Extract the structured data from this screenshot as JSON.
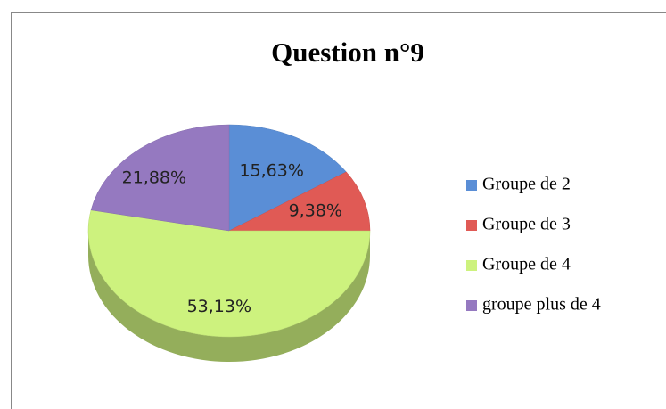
{
  "chart_data": {
    "type": "pie",
    "title": "Question n°9",
    "categories": [
      "Groupe de 2",
      "Groupe de 3",
      "Groupe de 4",
      "groupe plus de 4"
    ],
    "values": [
      15.63,
      9.38,
      53.13,
      21.88
    ],
    "value_labels": [
      "15,63%",
      "9,38%",
      "53,13%",
      "21,88%"
    ],
    "colors": [
      "#5a8ed6",
      "#e05a55",
      "#cdf27e",
      "#9579c0"
    ],
    "legend": "right"
  }
}
